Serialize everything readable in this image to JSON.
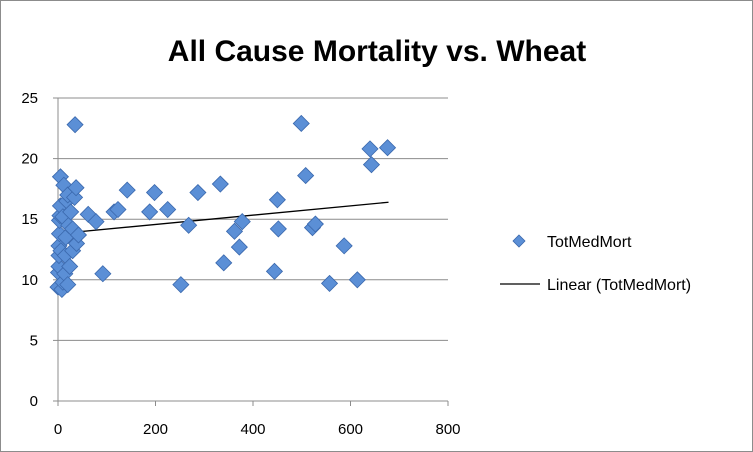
{
  "chart_data": {
    "type": "scatter",
    "title": "All Cause Mortality vs. Wheat",
    "xlabel": "",
    "ylabel": "",
    "xlim": [
      0,
      800
    ],
    "ylim": [
      0,
      25
    ],
    "x_ticks": [
      0,
      200,
      400,
      600,
      800
    ],
    "y_ticks": [
      0,
      5,
      10,
      15,
      20,
      25
    ],
    "grid": "horizontal",
    "legend_position": "right",
    "colors": {
      "marker": "#5b8fd6",
      "marker_edge": "#3a68ad",
      "trendline": "#000000",
      "grid": "#8c8c8c"
    },
    "series": [
      {
        "name": "TotMedMort",
        "marker": "diamond",
        "points": [
          {
            "x": 0,
            "y": 9.4
          },
          {
            "x": 1,
            "y": 10.6
          },
          {
            "x": 2,
            "y": 11.1
          },
          {
            "x": 2,
            "y": 12.0
          },
          {
            "x": 2,
            "y": 12.8
          },
          {
            "x": 3,
            "y": 13.8
          },
          {
            "x": 3,
            "y": 14.9
          },
          {
            "x": 4,
            "y": 15.3
          },
          {
            "x": 5,
            "y": 16.1
          },
          {
            "x": 5,
            "y": 18.5
          },
          {
            "x": 6,
            "y": 12.4
          },
          {
            "x": 8,
            "y": 9.2
          },
          {
            "x": 10,
            "y": 9.8
          },
          {
            "x": 10,
            "y": 15.2
          },
          {
            "x": 12,
            "y": 17.8
          },
          {
            "x": 14,
            "y": 10.5
          },
          {
            "x": 15,
            "y": 12.0
          },
          {
            "x": 16,
            "y": 13.5
          },
          {
            "x": 18,
            "y": 16.5
          },
          {
            "x": 20,
            "y": 9.6
          },
          {
            "x": 20,
            "y": 17.0
          },
          {
            "x": 22,
            "y": 14.5
          },
          {
            "x": 24,
            "y": 11.1
          },
          {
            "x": 26,
            "y": 15.6
          },
          {
            "x": 30,
            "y": 12.4
          },
          {
            "x": 30,
            "y": 14.2
          },
          {
            "x": 34,
            "y": 16.8
          },
          {
            "x": 35,
            "y": 22.8
          },
          {
            "x": 37,
            "y": 17.6
          },
          {
            "x": 38,
            "y": 13.0
          },
          {
            "x": 42,
            "y": 13.7
          },
          {
            "x": 62,
            "y": 15.4
          },
          {
            "x": 78,
            "y": 14.8
          },
          {
            "x": 92,
            "y": 10.5
          },
          {
            "x": 115,
            "y": 15.6
          },
          {
            "x": 123,
            "y": 15.8
          },
          {
            "x": 142,
            "y": 17.4
          },
          {
            "x": 188,
            "y": 15.6
          },
          {
            "x": 198,
            "y": 17.2
          },
          {
            "x": 225,
            "y": 15.8
          },
          {
            "x": 252,
            "y": 9.6
          },
          {
            "x": 268,
            "y": 14.5
          },
          {
            "x": 287,
            "y": 17.2
          },
          {
            "x": 333,
            "y": 17.9
          },
          {
            "x": 340,
            "y": 11.4
          },
          {
            "x": 362,
            "y": 14.0
          },
          {
            "x": 372,
            "y": 12.7
          },
          {
            "x": 378,
            "y": 14.8
          },
          {
            "x": 444,
            "y": 10.7
          },
          {
            "x": 450,
            "y": 16.6
          },
          {
            "x": 452,
            "y": 14.2
          },
          {
            "x": 499,
            "y": 22.9
          },
          {
            "x": 508,
            "y": 18.6
          },
          {
            "x": 522,
            "y": 14.3
          },
          {
            "x": 528,
            "y": 14.6
          },
          {
            "x": 557,
            "y": 9.7
          },
          {
            "x": 587,
            "y": 12.8
          },
          {
            "x": 614,
            "y": 10.0
          },
          {
            "x": 640,
            "y": 20.8
          },
          {
            "x": 643,
            "y": 19.5
          },
          {
            "x": 676,
            "y": 20.9
          }
        ]
      },
      {
        "name": "Linear (TotMedMort)",
        "type": "trendline",
        "fit": "linear",
        "x": [
          0,
          678
        ],
        "y": [
          13.8,
          16.4
        ]
      }
    ]
  }
}
